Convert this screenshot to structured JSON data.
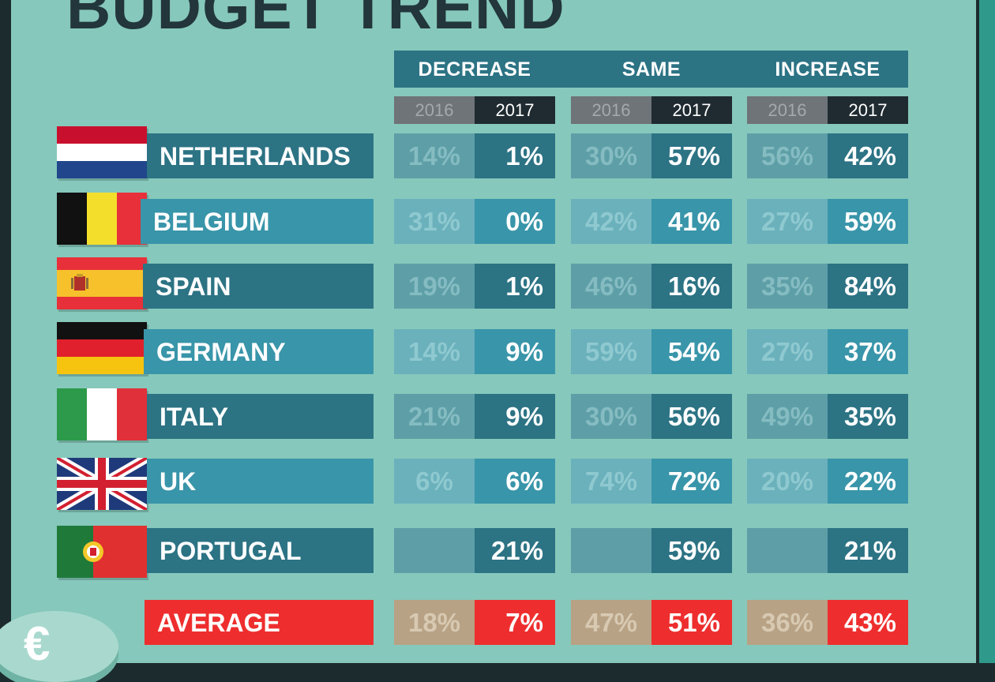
{
  "title": "BUDGET TREND",
  "currency_symbol": "€",
  "colors": {
    "dark_row": "#2c7384",
    "light_row": "#3995a9",
    "col2016_dark": "#5e9fa7",
    "col2016_light": "#6bb1bc",
    "average": "#ee2e2e",
    "average_2016": "#b8a285"
  },
  "chart_data": {
    "type": "table",
    "title": "BUDGET TREND",
    "categories": [
      "DECREASE",
      "SAME",
      "INCREASE"
    ],
    "years": [
      "2016",
      "2017"
    ],
    "rows": [
      {
        "country": "NETHERLANDS",
        "flag": "netherlands-flag",
        "decrease": [
          "14%",
          "1%"
        ],
        "same": [
          "30%",
          "57%"
        ],
        "increase": [
          "56%",
          "42%"
        ]
      },
      {
        "country": "BELGIUM",
        "flag": "belgium-flag",
        "decrease": [
          "31%",
          "0%"
        ],
        "same": [
          "42%",
          "41%"
        ],
        "increase": [
          "27%",
          "59%"
        ]
      },
      {
        "country": "SPAIN",
        "flag": "spain-flag",
        "decrease": [
          "19%",
          "1%"
        ],
        "same": [
          "46%",
          "16%"
        ],
        "increase": [
          "35%",
          "84%"
        ]
      },
      {
        "country": "GERMANY",
        "flag": "germany-flag",
        "decrease": [
          "14%",
          "9%"
        ],
        "same": [
          "59%",
          "54%"
        ],
        "increase": [
          "27%",
          "37%"
        ]
      },
      {
        "country": "ITALY",
        "flag": "italy-flag",
        "decrease": [
          "21%",
          "9%"
        ],
        "same": [
          "30%",
          "56%"
        ],
        "increase": [
          "49%",
          "35%"
        ]
      },
      {
        "country": "UK",
        "flag": "uk-flag",
        "decrease": [
          "6%",
          "6%"
        ],
        "same": [
          "74%",
          "72%"
        ],
        "increase": [
          "20%",
          "22%"
        ]
      },
      {
        "country": "PORTUGAL",
        "flag": "portugal-flag",
        "decrease": [
          "",
          "21%"
        ],
        "same": [
          "",
          "59%"
        ],
        "increase": [
          "",
          "21%"
        ]
      }
    ],
    "average": {
      "country": "AVERAGE",
      "decrease": [
        "18%",
        "7%"
      ],
      "same": [
        "47%",
        "51%"
      ],
      "increase": [
        "36%",
        "43%"
      ]
    }
  }
}
